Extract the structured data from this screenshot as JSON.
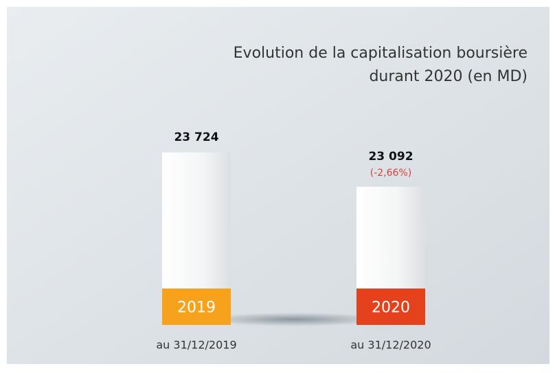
{
  "chart_data": {
    "type": "bar",
    "title": [
      "Evolution de la capitalisation boursière",
      "durant 2020 (en MD)"
    ],
    "categories": [
      "au 31/12/2019",
      "au 31/12/2020"
    ],
    "base_labels": [
      "2019",
      "2020"
    ],
    "base_colors": [
      "#f6a21c",
      "#e4411d"
    ],
    "values": [
      23724,
      23092
    ],
    "value_labels": [
      "23 724",
      "23 092"
    ],
    "annotations": [
      null,
      "(-2,66%)"
    ],
    "ylim": [
      20550,
      24000
    ]
  }
}
